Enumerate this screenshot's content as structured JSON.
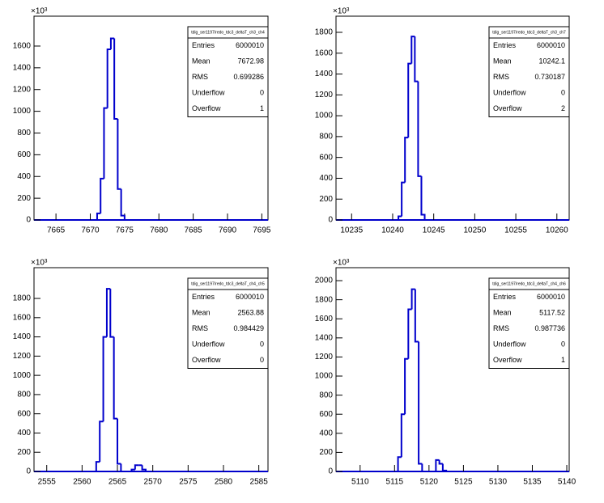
{
  "chart_data": [
    {
      "type": "histogram",
      "title": "tdig_ser1197/redo_tdc3_deltaT_ch3_ch4",
      "y_scale_label": "×10³",
      "color": "#0000cc",
      "bins": [
        7670.5,
        7671,
        7671.5,
        7672,
        7672.5,
        7673,
        7673.5,
        7674,
        7674.5,
        7675
      ],
      "values": [
        0,
        60,
        380,
        1030,
        1570,
        1670,
        930,
        285,
        40
      ],
      "xlim": [
        7661.8,
        7695.9
      ],
      "ylim": [
        0,
        1875
      ],
      "xticks": [
        7665,
        7670,
        7675,
        7680,
        7685,
        7690,
        7695
      ],
      "yticks": [
        0,
        200,
        400,
        600,
        800,
        1000,
        1200,
        1400,
        1600
      ],
      "stats": [
        {
          "label": "Entries",
          "value": 6000010
        },
        {
          "label": "Mean",
          "value": 7672.98
        },
        {
          "label": "RMS",
          "value": 0.699286
        },
        {
          "label": "Underflow",
          "value": 0
        },
        {
          "label": "Overflow",
          "value": 1
        }
      ]
    },
    {
      "type": "histogram",
      "title": "tdig_ser1197/redo_tdc3_deltaT_ch3_ch7",
      "y_scale_label": "×10³",
      "color": "#0000cc",
      "bins": [
        10240.7,
        10241.1,
        10241.5,
        10241.9,
        10242.3,
        10242.7,
        10243.1,
        10243.5,
        10243.9
      ],
      "values": [
        35,
        360,
        790,
        1500,
        1760,
        1330,
        420,
        50
      ],
      "xlim": [
        10233.1,
        10261.5
      ],
      "ylim": [
        0,
        1955
      ],
      "xticks": [
        10235,
        10240,
        10245,
        10250,
        10255,
        10260
      ],
      "yticks": [
        0,
        200,
        400,
        600,
        800,
        1000,
        1200,
        1400,
        1600,
        1800
      ],
      "stats": [
        {
          "label": "Entries",
          "value": 6000010
        },
        {
          "label": "Mean",
          "value": 10242.1
        },
        {
          "label": "RMS",
          "value": 0.730187
        },
        {
          "label": "Underflow",
          "value": 0
        },
        {
          "label": "Overflow",
          "value": 2
        }
      ]
    },
    {
      "type": "histogram",
      "title": "tdig_ser1197/redo_tdc3_deltaT_ch4_ch5",
      "y_scale_label": "×10³",
      "color": "#0000cc",
      "bins": [
        2562,
        2562.5,
        2563,
        2563.5,
        2564,
        2564.5,
        2565,
        2565.5,
        2566,
        2566.5,
        2567,
        2567.5,
        2568,
        2568.5,
        2569
      ],
      "values": [
        100,
        520,
        1400,
        1900,
        1400,
        550,
        80,
        0,
        0,
        0,
        20,
        65,
        65,
        20
      ],
      "xlim": [
        2553.2,
        2586.3
      ],
      "ylim": [
        0,
        2120
      ],
      "xticks": [
        2555,
        2560,
        2565,
        2570,
        2575,
        2580,
        2585
      ],
      "yticks": [
        0,
        200,
        400,
        600,
        800,
        1000,
        1200,
        1400,
        1600,
        1800
      ],
      "stats": [
        {
          "label": "Entries",
          "value": 6000010
        },
        {
          "label": "Mean",
          "value": 2563.88
        },
        {
          "label": "RMS",
          "value": 0.984429
        },
        {
          "label": "Underflow",
          "value": 0
        },
        {
          "label": "Overflow",
          "value": 0
        }
      ]
    },
    {
      "type": "histogram",
      "title": "tdig_ser1197/redo_tdc3_deltaT_ch4_ch6",
      "y_scale_label": "×10³",
      "color": "#0000cc",
      "bins": [
        5115.5,
        5116,
        5116.5,
        5117,
        5117.5,
        5118,
        5118.5,
        5119,
        5119.5,
        5120,
        5120.5,
        5121,
        5121.5,
        5122,
        5122.5
      ],
      "values": [
        150,
        600,
        1180,
        1700,
        1910,
        1360,
        80,
        0,
        0,
        0,
        0,
        120,
        80,
        10
      ],
      "xlim": [
        5106.5,
        5140.35
      ],
      "ylim": [
        0,
        2136
      ],
      "xticks": [
        5110,
        5115,
        5120,
        5125,
        5130,
        5135,
        5140
      ],
      "yticks": [
        0,
        200,
        400,
        600,
        800,
        1000,
        1200,
        1400,
        1600,
        1800,
        2000
      ],
      "stats": [
        {
          "label": "Entries",
          "value": 6000010
        },
        {
          "label": "Mean",
          "value": 5117.52
        },
        {
          "label": "RMS",
          "value": 0.987736
        },
        {
          "label": "Underflow",
          "value": 0
        },
        {
          "label": "Overflow",
          "value": 1
        }
      ]
    }
  ]
}
